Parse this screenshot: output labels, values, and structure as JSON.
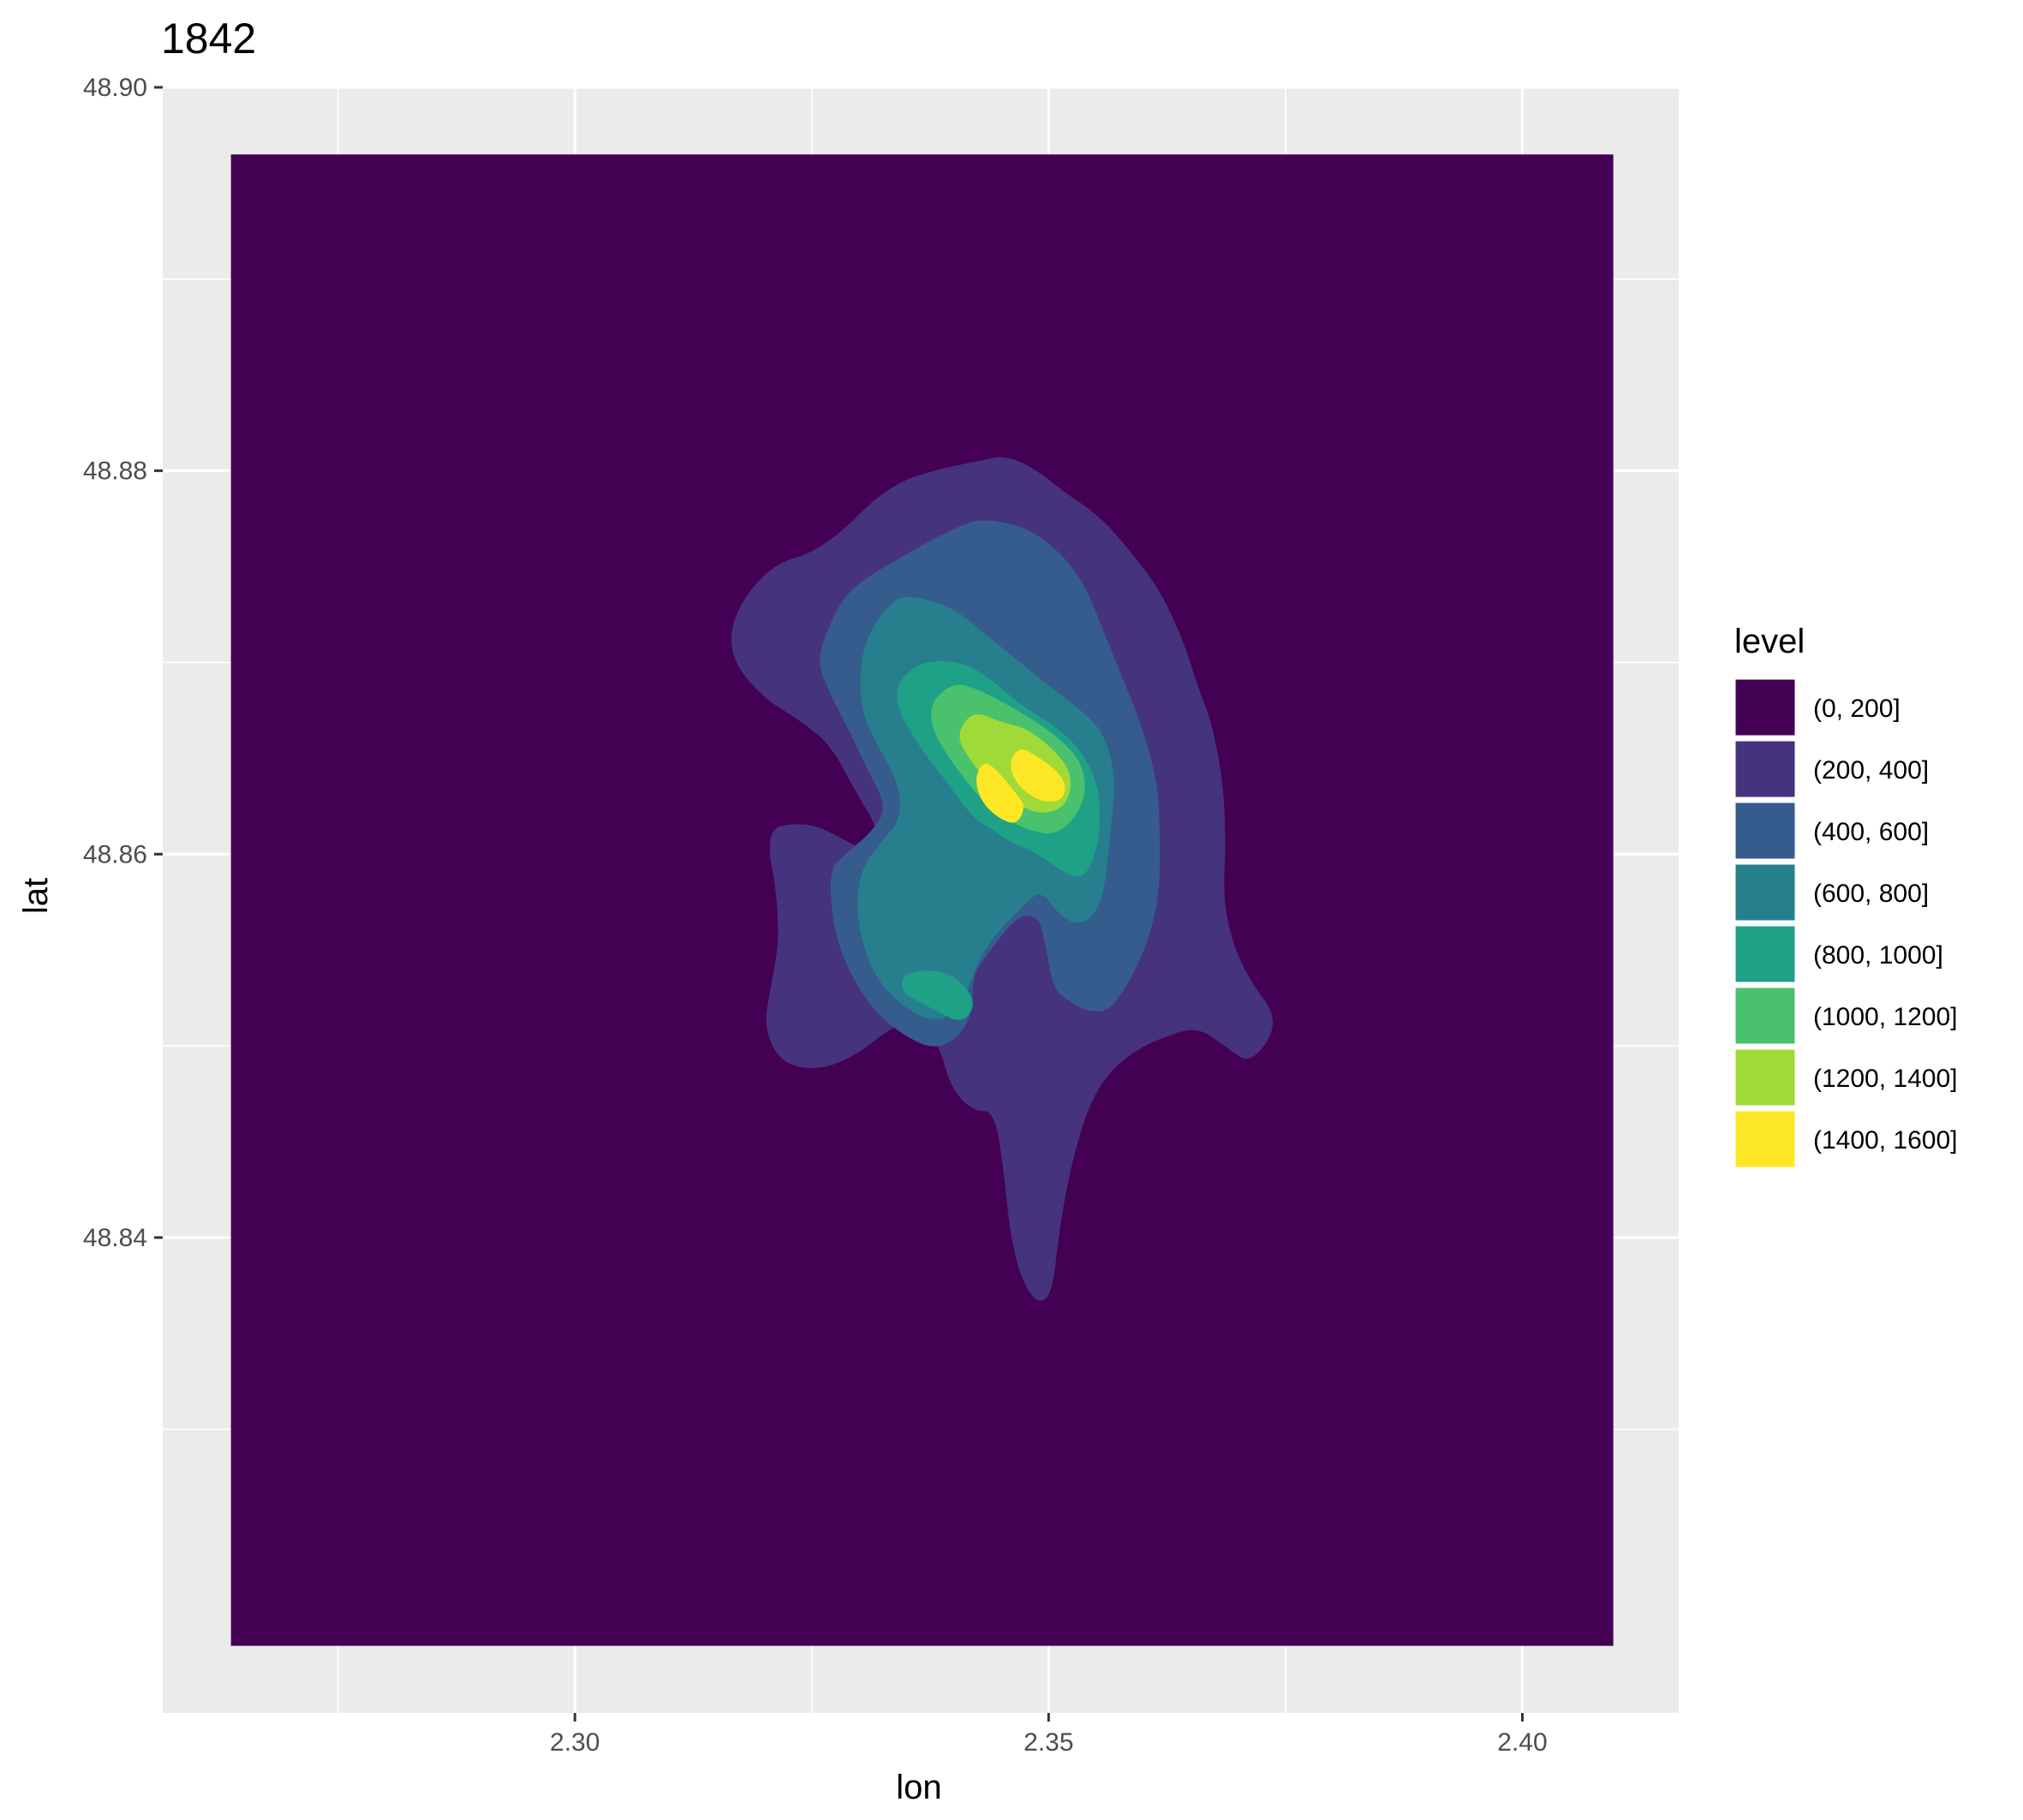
{
  "chart_data": {
    "type": "heatmap",
    "subtype": "filled-contour",
    "title": "1842",
    "xlabel": "lon",
    "ylabel": "lat",
    "xlim": [
      2.2565,
      2.4165
    ],
    "ylim": [
      48.8152,
      48.9
    ],
    "x_ticks": [
      {
        "value": 2.3,
        "label": "2.30"
      },
      {
        "value": 2.35,
        "label": "2.35"
      },
      {
        "value": 2.4,
        "label": "2.40"
      }
    ],
    "x_minor_ticks": [
      2.275,
      2.325,
      2.375
    ],
    "y_ticks": [
      {
        "value": 48.9,
        "label": "48.90"
      },
      {
        "value": 48.88,
        "label": "48.88"
      },
      {
        "value": 48.86,
        "label": "48.86"
      },
      {
        "value": 48.84,
        "label": "48.84"
      }
    ],
    "y_minor_ticks": [
      48.89,
      48.87,
      48.85,
      48.83
    ],
    "grid": true,
    "panel_background": "#ebebeb",
    "density_extent": {
      "lon": [
        2.2637,
        2.4096
      ],
      "lat": [
        48.8187,
        48.8965
      ]
    },
    "legend": {
      "title": "level",
      "position": "right",
      "entries": [
        {
          "label": "(0, 200]",
          "color": "#440154"
        },
        {
          "label": "(200, 400]",
          "color": "#46337e"
        },
        {
          "label": "(400, 600]",
          "color": "#365c8d"
        },
        {
          "label": "(600, 800]",
          "color": "#277f8e"
        },
        {
          "label": "(800, 1000]",
          "color": "#1fa187"
        },
        {
          "label": "(1000, 1200]",
          "color": "#4ac16d"
        },
        {
          "label": "(1200, 1400]",
          "color": "#a0da39"
        },
        {
          "label": "(1400, 1600]",
          "color": "#fde725"
        }
      ]
    },
    "contours": [
      {
        "level": "(200, 400]",
        "color": "#46337e",
        "points": [
          [
            2.3483,
            48.8802
          ],
          [
            2.3516,
            48.8789
          ],
          [
            2.3555,
            48.8776
          ],
          [
            2.3588,
            48.8757
          ],
          [
            2.3617,
            48.8738
          ],
          [
            2.3641,
            48.8713
          ],
          [
            2.3657,
            48.8688
          ],
          [
            2.3672,
            48.8669
          ],
          [
            2.3684,
            48.8638
          ],
          [
            2.3687,
            48.8606
          ],
          [
            2.3684,
            48.8575
          ],
          [
            2.3697,
            48.8549
          ],
          [
            2.3718,
            48.853
          ],
          [
            2.3737,
            48.8518
          ],
          [
            2.3736,
            48.8505
          ],
          [
            2.3712,
            48.8491
          ],
          [
            2.3691,
            48.8498
          ],
          [
            2.3658,
            48.851
          ],
          [
            2.3624,
            48.8505
          ],
          [
            2.3592,
            48.8498
          ],
          [
            2.3561,
            48.8485
          ],
          [
            2.354,
            48.8466
          ],
          [
            2.3522,
            48.8434
          ],
          [
            2.3511,
            48.8403
          ],
          [
            2.3504,
            48.8371
          ],
          [
            2.3489,
            48.8365
          ],
          [
            2.3471,
            48.8378
          ],
          [
            2.3459,
            48.8403
          ],
          [
            2.3453,
            48.8434
          ],
          [
            2.3443,
            48.8466
          ],
          [
            2.342,
            48.8466
          ],
          [
            2.3397,
            48.8478
          ],
          [
            2.3386,
            48.8498
          ],
          [
            2.337,
            48.851
          ],
          [
            2.334,
            48.8512
          ],
          [
            2.3297,
            48.8495
          ],
          [
            2.3262,
            48.8488
          ],
          [
            2.3229,
            48.8489
          ],
          [
            2.321,
            48.8497
          ],
          [
            2.32,
            48.8512
          ],
          [
            2.3207,
            48.8531
          ],
          [
            2.3216,
            48.8556
          ],
          [
            2.3211,
            48.8587
          ],
          [
            2.3205,
            48.8599
          ],
          [
            2.3207,
            48.8613
          ],
          [
            2.3227,
            48.8616
          ],
          [
            2.3257,
            48.8615
          ],
          [
            2.3304,
            48.8602
          ],
          [
            2.3323,
            48.86
          ],
          [
            2.3318,
            48.8615
          ],
          [
            2.3297,
            48.8632
          ],
          [
            2.327,
            48.8657
          ],
          [
            2.3237,
            48.867
          ],
          [
            2.32,
            48.8681
          ],
          [
            2.3167,
            48.87
          ],
          [
            2.3164,
            48.8719
          ],
          [
            2.3184,
            48.8738
          ],
          [
            2.3214,
            48.8752
          ],
          [
            2.325,
            48.8757
          ],
          [
            2.3286,
            48.877
          ],
          [
            2.3311,
            48.8783
          ],
          [
            2.3345,
            48.8795
          ],
          [
            2.3386,
            48.8801
          ],
          [
            2.3425,
            48.8805
          ],
          [
            2.3453,
            48.8808
          ]
        ]
      },
      {
        "level": "(400, 600]",
        "color": "#365c8d",
        "points": [
          [
            2.3431,
            48.8775
          ],
          [
            2.3474,
            48.8771
          ],
          [
            2.3507,
            48.876
          ],
          [
            2.3536,
            48.8743
          ],
          [
            2.3555,
            48.872
          ],
          [
            2.3577,
            48.8693
          ],
          [
            2.3597,
            48.8669
          ],
          [
            2.3615,
            48.8638
          ],
          [
            2.3618,
            48.8606
          ],
          [
            2.3616,
            48.8575
          ],
          [
            2.3601,
            48.8549
          ],
          [
            2.3581,
            48.853
          ],
          [
            2.3563,
            48.8518
          ],
          [
            2.354,
            48.8518
          ],
          [
            2.3522,
            48.8523
          ],
          [
            2.3505,
            48.853
          ],
          [
            2.3498,
            48.8549
          ],
          [
            2.349,
            48.8568
          ],
          [
            2.3467,
            48.8568
          ],
          [
            2.3437,
            48.8549
          ],
          [
            2.342,
            48.8537
          ],
          [
            2.342,
            48.8518
          ],
          [
            2.3406,
            48.8505
          ],
          [
            2.338,
            48.8498
          ],
          [
            2.3348,
            48.8505
          ],
          [
            2.3316,
            48.8518
          ],
          [
            2.3291,
            48.8537
          ],
          [
            2.3276,
            48.8556
          ],
          [
            2.327,
            48.8575
          ],
          [
            2.327,
            48.8593
          ],
          [
            2.3286,
            48.86
          ],
          [
            2.3316,
            48.8613
          ],
          [
            2.3329,
            48.8625
          ],
          [
            2.3308,
            48.8645
          ],
          [
            2.3291,
            48.8663
          ],
          [
            2.3272,
            48.8681
          ],
          [
            2.3255,
            48.87
          ],
          [
            2.3268,
            48.8719
          ],
          [
            2.3285,
            48.8735
          ],
          [
            2.331,
            48.8745
          ],
          [
            2.3345,
            48.8755
          ],
          [
            2.338,
            48.8765
          ],
          [
            2.341,
            48.8772
          ]
        ]
      },
      {
        "level": "(600, 800]",
        "color": "#277f8e",
        "points": [
          [
            2.3345,
            48.8735
          ],
          [
            2.337,
            48.8733
          ],
          [
            2.3401,
            48.8728
          ],
          [
            2.3432,
            48.8715
          ],
          [
            2.3463,
            48.8703
          ],
          [
            2.3499,
            48.8688
          ],
          [
            2.3535,
            48.8675
          ],
          [
            2.356,
            48.8662
          ],
          [
            2.3571,
            48.8638
          ],
          [
            2.3564,
            48.8606
          ],
          [
            2.3559,
            48.8581
          ],
          [
            2.3548,
            48.8568
          ],
          [
            2.3531,
            48.8563
          ],
          [
            2.3512,
            48.8568
          ],
          [
            2.3492,
            48.8581
          ],
          [
            2.3477,
            48.8575
          ],
          [
            2.3449,
            48.8561
          ],
          [
            2.3431,
            48.8549
          ],
          [
            2.342,
            48.8537
          ],
          [
            2.341,
            48.8523
          ],
          [
            2.3393,
            48.8514
          ],
          [
            2.3367,
            48.8514
          ],
          [
            2.3338,
            48.8524
          ],
          [
            2.3316,
            48.8537
          ],
          [
            2.3302,
            48.8556
          ],
          [
            2.3297,
            48.8575
          ],
          [
            2.3303,
            48.8593
          ],
          [
            2.3323,
            48.8606
          ],
          [
            2.3345,
            48.8619
          ],
          [
            2.3341,
            48.8638
          ],
          [
            2.3319,
            48.8657
          ],
          [
            2.3302,
            48.8675
          ],
          [
            2.3301,
            48.87
          ],
          [
            2.3311,
            48.8716
          ],
          [
            2.3328,
            48.8728
          ]
        ]
      },
      {
        "level": "(800, 1000]",
        "color": "#1fa187",
        "points": [
          [
            2.338,
            48.8701
          ],
          [
            2.341,
            48.87
          ],
          [
            2.344,
            48.8691
          ],
          [
            2.347,
            48.8678
          ],
          [
            2.35,
            48.8669
          ],
          [
            2.353,
            48.8657
          ],
          [
            2.3552,
            48.8638
          ],
          [
            2.3555,
            48.8613
          ],
          [
            2.3545,
            48.8593
          ],
          [
            2.3531,
            48.8587
          ],
          [
            2.3508,
            48.8593
          ],
          [
            2.3486,
            48.8601
          ],
          [
            2.346,
            48.8606
          ],
          [
            2.344,
            48.8613
          ],
          [
            2.342,
            48.8619
          ],
          [
            2.3392,
            48.8638
          ],
          [
            2.3362,
            48.8657
          ],
          [
            2.3341,
            48.8675
          ],
          [
            2.3339,
            48.8688
          ],
          [
            2.3358,
            48.8698
          ]
        ]
      },
      {
        "level": "(800, 1000]",
        "color": "#1fa187",
        "points": [
          [
            2.3345,
            48.8537
          ],
          [
            2.3372,
            48.854
          ],
          [
            2.34,
            48.8537
          ],
          [
            2.342,
            48.8526
          ],
          [
            2.342,
            48.8518
          ],
          [
            2.3406,
            48.8512
          ],
          [
            2.3383,
            48.8518
          ],
          [
            2.3363,
            48.8523
          ],
          [
            2.3345,
            48.8528
          ]
        ]
      },
      {
        "level": "(1000, 1200]",
        "color": "#4ac16d",
        "points": [
          [
            2.34,
            48.869
          ],
          [
            2.343,
            48.8685
          ],
          [
            2.346,
            48.8677
          ],
          [
            2.3487,
            48.8669
          ],
          [
            2.3512,
            48.866
          ],
          [
            2.3535,
            48.8648
          ],
          [
            2.354,
            48.8632
          ],
          [
            2.3527,
            48.8618
          ],
          [
            2.3506,
            48.861
          ],
          [
            2.3483,
            48.8612
          ],
          [
            2.3463,
            48.8616
          ],
          [
            2.344,
            48.8623
          ],
          [
            2.3418,
            48.8635
          ],
          [
            2.3395,
            48.865
          ],
          [
            2.3377,
            48.8665
          ],
          [
            2.3375,
            48.8679
          ]
        ]
      },
      {
        "level": "(1200, 1400]",
        "color": "#a0da39",
        "points": [
          [
            2.342,
            48.8675
          ],
          [
            2.3449,
            48.8669
          ],
          [
            2.3475,
            48.8666
          ],
          [
            2.35,
            48.8657
          ],
          [
            2.3522,
            48.8645
          ],
          [
            2.3524,
            48.8632
          ],
          [
            2.3512,
            48.8623
          ],
          [
            2.349,
            48.8621
          ],
          [
            2.3466,
            48.8626
          ],
          [
            2.344,
            48.8635
          ],
          [
            2.3417,
            48.8649
          ],
          [
            2.3402,
            48.8662
          ]
        ]
      },
      {
        "level": "(1400, 1600]",
        "color": "#fde725",
        "points": [
          [
            2.347,
            48.8656
          ],
          [
            2.3488,
            48.8651
          ],
          [
            2.3508,
            48.8644
          ],
          [
            2.3519,
            48.8636
          ],
          [
            2.3514,
            48.8628
          ],
          [
            2.3495,
            48.8627
          ],
          [
            2.3476,
            48.8632
          ],
          [
            2.3462,
            48.864
          ],
          [
            2.3459,
            48.8649
          ]
        ]
      },
      {
        "level": "(1400, 1600]",
        "color": "#fde725",
        "points": [
          [
            2.3432,
            48.8649
          ],
          [
            2.3447,
            48.8643
          ],
          [
            2.3465,
            48.8632
          ],
          [
            2.3476,
            48.8625
          ],
          [
            2.3466,
            48.8615
          ],
          [
            2.3446,
            48.8619
          ],
          [
            2.3428,
            48.8628
          ],
          [
            2.3422,
            48.864
          ]
        ]
      }
    ]
  }
}
